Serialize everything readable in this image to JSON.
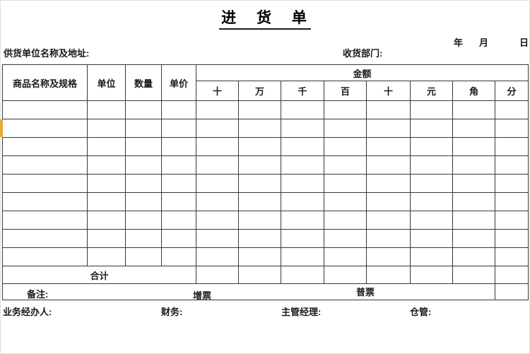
{
  "header": {
    "title": "进 货 单",
    "date": {
      "year": "年",
      "month": "月",
      "day": "日"
    },
    "supplier_label": "供货单位名称及地址:",
    "dept_label": "收货部门:"
  },
  "table": {
    "data_row_count": 9,
    "column_count": 12,
    "header": {
      "product": "商品名称及规格",
      "unit": "单位",
      "quantity": "数量",
      "price": "单价",
      "amount": "金额",
      "amount_digits": [
        "十",
        "万",
        "千",
        "百",
        "十",
        "元",
        "角",
        "分"
      ]
    },
    "summary": {
      "total_label": "合计",
      "remark_label": "备注:",
      "vat_invoice_label": "增票",
      "plain_invoice_label": "普票"
    }
  },
  "signatures": {
    "handler_label": "业务经办人:",
    "finance_label": "财务:",
    "manager_label": "主管经理:",
    "warehouse_label": "仓管:"
  },
  "colors": {
    "border": "#383838",
    "accent_strip": "#e6a93c"
  }
}
